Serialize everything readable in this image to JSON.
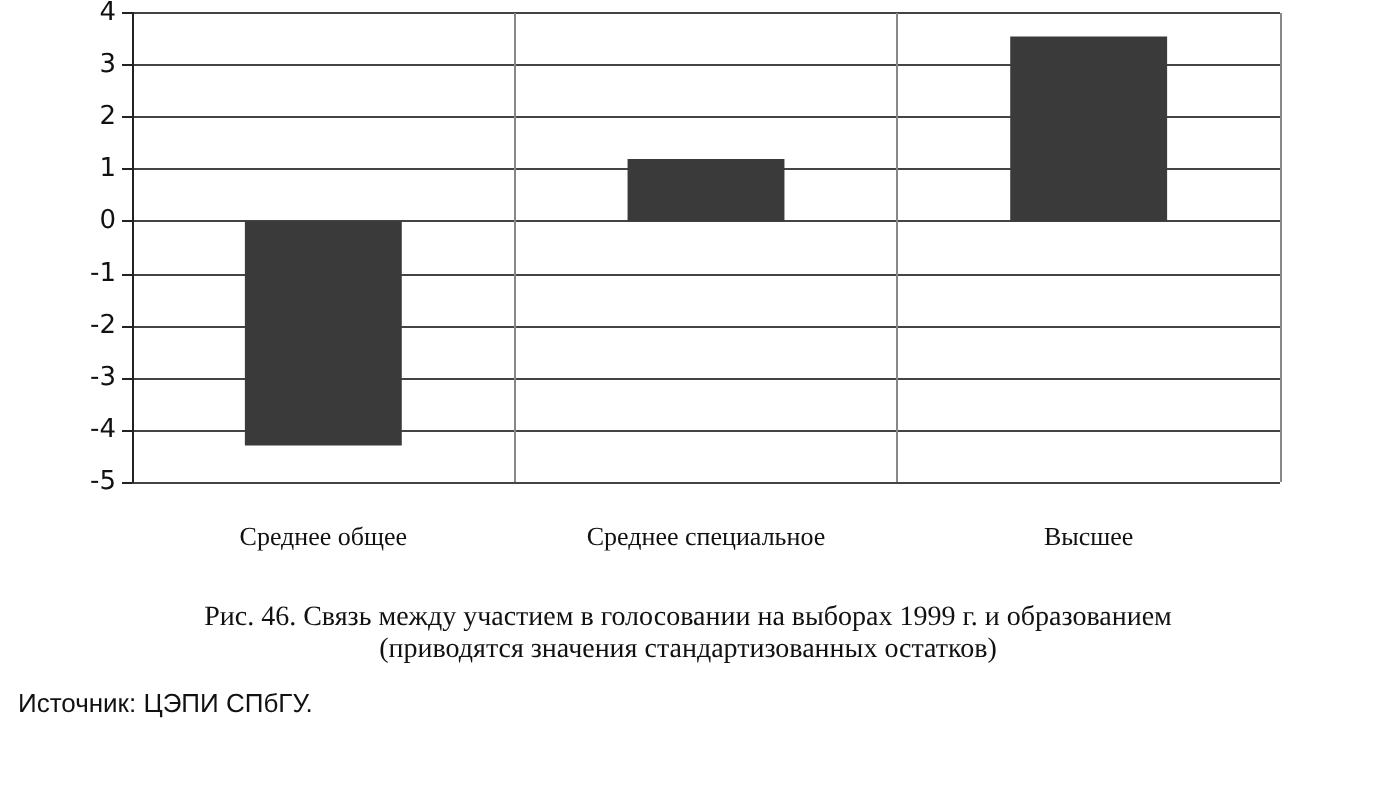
{
  "chart_data": {
    "type": "bar",
    "title": "Рис. 46. Связь между участием в голосовании на выборах 1999 г. и образованием\n(приводятся значения стандартизованных остатков)",
    "annotations": [
      "Источник: ЦЭПИ СПбГУ."
    ],
    "categories": [
      "Среднее общее",
      "Среднее специальное",
      "Высшее"
    ],
    "values": [
      -4.3,
      1.2,
      3.55
    ],
    "color": "#3a3a3a",
    "ylim": [
      -5,
      4
    ],
    "yticks": [
      -5,
      -4,
      -3,
      -2,
      -1,
      0,
      1,
      2,
      3,
      4
    ],
    "grid": true
  }
}
